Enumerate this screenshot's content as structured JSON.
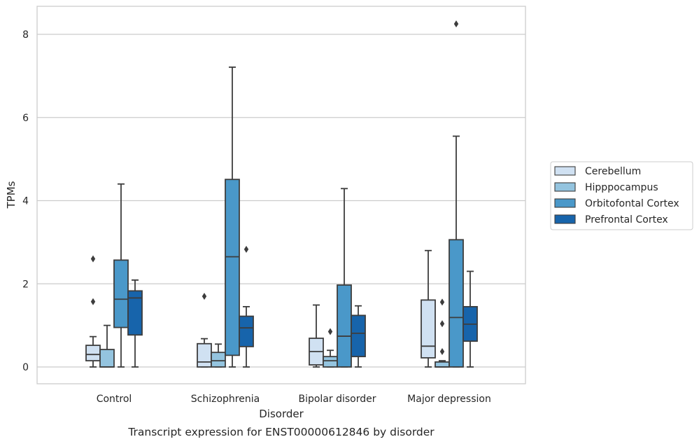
{
  "chart_data": {
    "type": "box",
    "xlabel": "Disorder",
    "ylabel": "TPMs",
    "caption": "Transcript expression for ENST00000612846 by disorder",
    "ylim": [
      -0.4,
      8.7
    ],
    "yticks": [
      0,
      2,
      4,
      6,
      8
    ],
    "grid": "y",
    "legend_position": "right",
    "categories": [
      "Control",
      "Schizophrenia",
      "Bipolar disorder",
      "Major depression"
    ],
    "series": [
      {
        "name": "Cerebellum",
        "color": "#d0e1f2",
        "boxes": [
          {
            "whislo": 0.0,
            "q1": 0.15,
            "med": 0.3,
            "q3": 0.52,
            "whishi": 0.73,
            "fliers": [
              1.57,
              2.6
            ]
          },
          {
            "whislo": 0.0,
            "q1": 0.0,
            "med": 0.12,
            "q3": 0.56,
            "whishi": 0.68,
            "fliers": [
              1.7
            ]
          },
          {
            "whislo": 0.0,
            "q1": 0.05,
            "med": 0.37,
            "q3": 0.69,
            "whishi": 1.49,
            "fliers": []
          },
          {
            "whislo": 0.0,
            "q1": 0.22,
            "med": 0.5,
            "q3": 1.61,
            "whishi": 2.8,
            "fliers": []
          }
        ]
      },
      {
        "name": "Hipppocampus",
        "color": "#94c4df",
        "boxes": [
          {
            "whislo": 0.0,
            "q1": 0.0,
            "med": 0.0,
            "q3": 0.42,
            "whishi": 1.0,
            "fliers": []
          },
          {
            "whislo": 0.0,
            "q1": 0.0,
            "med": 0.15,
            "q3": 0.35,
            "whishi": 0.55,
            "fliers": []
          },
          {
            "whislo": 0.0,
            "q1": 0.0,
            "med": 0.15,
            "q3": 0.25,
            "whishi": 0.4,
            "fliers": [
              0.85
            ]
          },
          {
            "whislo": 0.0,
            "q1": 0.0,
            "med": 0.0,
            "q3": 0.12,
            "whishi": 0.15,
            "fliers": [
              0.37,
              1.04,
              1.56
            ]
          }
        ]
      },
      {
        "name": "Orbitofontal Cortex",
        "color": "#4a98c9",
        "boxes": [
          {
            "whislo": 0.0,
            "q1": 0.95,
            "med": 1.63,
            "q3": 2.57,
            "whishi": 4.4,
            "fliers": []
          },
          {
            "whislo": 0.0,
            "q1": 0.28,
            "med": 2.65,
            "q3": 4.51,
            "whishi": 7.21,
            "fliers": []
          },
          {
            "whislo": 0.0,
            "q1": 0.0,
            "med": 0.74,
            "q3": 1.97,
            "whishi": 4.29,
            "fliers": []
          },
          {
            "whislo": 0.0,
            "q1": 0.0,
            "med": 1.19,
            "q3": 3.06,
            "whishi": 5.55,
            "fliers": [
              8.25
            ]
          }
        ]
      },
      {
        "name": "Prefrontal Cortex",
        "color": "#1764ab",
        "boxes": [
          {
            "whislo": 0.0,
            "q1": 0.77,
            "med": 1.66,
            "q3": 1.83,
            "whishi": 2.09,
            "fliers": []
          },
          {
            "whislo": 0.0,
            "q1": 0.49,
            "med": 0.94,
            "q3": 1.22,
            "whishi": 1.45,
            "fliers": [
              2.83
            ]
          },
          {
            "whislo": 0.0,
            "q1": 0.25,
            "med": 0.81,
            "q3": 1.24,
            "whishi": 1.47,
            "fliers": []
          },
          {
            "whislo": 0.0,
            "q1": 0.62,
            "med": 1.03,
            "q3": 1.45,
            "whishi": 2.3,
            "fliers": []
          }
        ]
      }
    ]
  }
}
